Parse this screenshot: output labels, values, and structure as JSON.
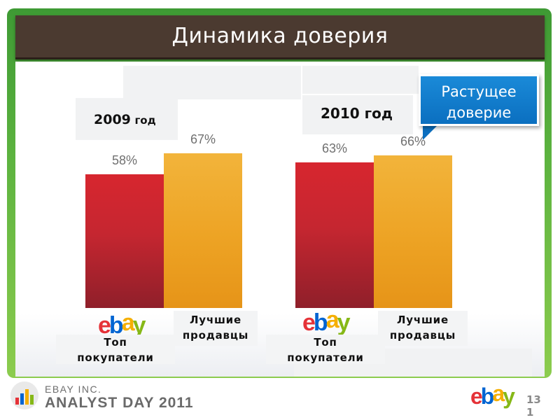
{
  "slide": {
    "title": "Динамика доверия",
    "callout": [
      "Растущее",
      "доверие"
    ],
    "page_number": "131"
  },
  "footer": {
    "line1": "EBAY INC.",
    "line2": "ANALYST DAY 2011"
  },
  "logos": {
    "ebay": [
      "e",
      "b",
      "a",
      "y"
    ]
  },
  "colors": {
    "top_buyers": "#c52630",
    "best_sellers": "#eda324",
    "callout": "#0b6fc0",
    "title_bar": "#4b3a30"
  },
  "chart_data": {
    "type": "bar",
    "groups": [
      {
        "year": "2009",
        "year_suffix": "год"
      },
      {
        "year": "2010",
        "year_suffix": "год"
      }
    ],
    "categories": [
      "2009 год",
      "2010 год"
    ],
    "series": [
      {
        "name": "Топ покупатели",
        "name_lines": [
          "Топ",
          "покупатели"
        ],
        "values": [
          58,
          63
        ],
        "labels": [
          "58%",
          "63%"
        ]
      },
      {
        "name": "Лучшие продавцы",
        "name_lines": [
          "Лучшие",
          "продавцы"
        ],
        "values": [
          67,
          66
        ],
        "labels": [
          "67%",
          "66%"
        ]
      }
    ],
    "unit": "%",
    "ylim": [
      0,
      100
    ],
    "grid": false
  }
}
